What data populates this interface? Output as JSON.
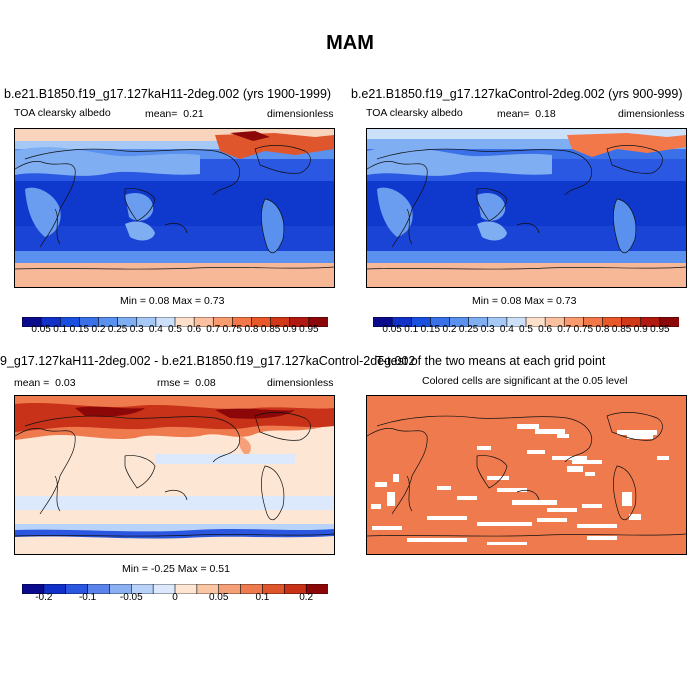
{
  "title": "MAM",
  "panels": [
    {
      "id": "p1",
      "case": "b.e21.B1850.f19_g17.127kaH11-2deg.002 (yrs 1900-1999)",
      "variable": "TOA clearsky albedo",
      "mean_label": "mean=",
      "mean": "0.21",
      "units": "dimensionless",
      "minmax": "Min =   0.08 Max =   0.73"
    },
    {
      "id": "p2",
      "case": "b.e21.B1850.f19_g17.127kaControl-2deg.002 (yrs 900-999)",
      "variable": "TOA clearsky albedo",
      "mean_label": "mean=",
      "mean": "0.18",
      "units": "dimensionless",
      "minmax": "Min =   0.08 Max =   0.73"
    },
    {
      "id": "p3",
      "case": "9_g17.127kaH11-2deg.002 - b.e21.B1850.f19_g17.127kaControl-2deg.002",
      "mean_label": "mean =",
      "mean": "0.03",
      "rmse_label": "rmse =",
      "rmse": "0.08",
      "units": "dimensionless",
      "minmax": "Min =  -0.25 Max =   0.51"
    },
    {
      "id": "p4",
      "case": "T-test of the two means at each grid point",
      "subtitle": "Colored cells are significant at the 0.05 level"
    }
  ],
  "colorbar_abs": {
    "colors": [
      "#0a0a8c",
      "#1030c8",
      "#1a50e0",
      "#3a70e8",
      "#5a90ee",
      "#80aef2",
      "#a6c8f6",
      "#cce0fa",
      "#fde0cc",
      "#fbc0a0",
      "#f89c70",
      "#f2784a",
      "#e85828",
      "#d03818",
      "#b01810",
      "#8c0808"
    ],
    "labels": [
      "0.05",
      "0.1",
      "0.15",
      "0.2",
      "0.25",
      "0.3",
      "0.4",
      "0.5",
      "0.6",
      "0.7",
      "0.75",
      "0.8",
      "0.85",
      "0.9",
      "0.95"
    ]
  },
  "colorbar_diff": {
    "colors": [
      "#0a0a8c",
      "#1030c8",
      "#2a56e0",
      "#5a84ea",
      "#8ab0f2",
      "#b8d2f8",
      "#dce8fb",
      "#fde6d4",
      "#fbc6a4",
      "#f6a07a",
      "#ee7a4e",
      "#e0562c",
      "#c83218",
      "#8c0808"
    ],
    "labels": [
      "-0.2",
      "-0.1",
      "-0.05",
      "0",
      "0.05",
      "0.1",
      "0.2"
    ],
    "label_positions": [
      1,
      3,
      5,
      7,
      9,
      11,
      13
    ]
  }
}
